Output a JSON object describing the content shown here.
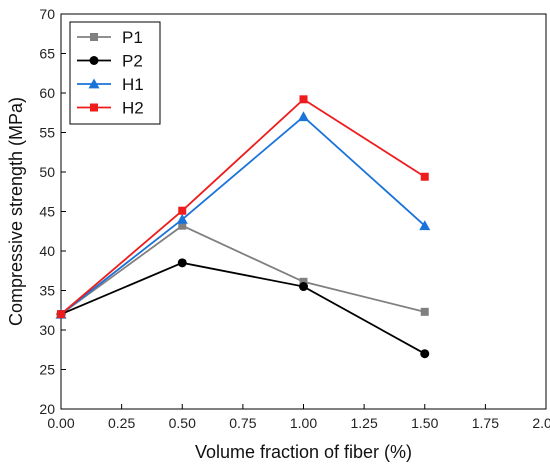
{
  "chart_data": {
    "type": "line",
    "title": "",
    "xlabel": "Volume fraction of fiber (%)",
    "ylabel": "Compressive strength (MPa)",
    "xlim": [
      0.0,
      2.0
    ],
    "ylim": [
      20,
      70
    ],
    "xticks": [
      "0.00",
      "0.25",
      "0.50",
      "0.75",
      "1.00",
      "1.25",
      "1.50",
      "1.75",
      "2.00"
    ],
    "yticks": [
      "20",
      "25",
      "30",
      "35",
      "40",
      "45",
      "50",
      "55",
      "60",
      "65",
      "70"
    ],
    "x": [
      0.0,
      0.5,
      1.0,
      1.5
    ],
    "grid": false,
    "legend_position": "top-left",
    "series": [
      {
        "name": "P1",
        "color": "#808080",
        "marker": "square",
        "values": [
          32.0,
          43.2,
          36.1,
          32.3
        ]
      },
      {
        "name": "P2",
        "color": "#000000",
        "marker": "circle",
        "values": [
          32.0,
          38.5,
          35.5,
          27.0
        ]
      },
      {
        "name": "H1",
        "color": "#1a73d9",
        "marker": "triangle",
        "values": [
          32.0,
          44.0,
          57.0,
          43.2
        ]
      },
      {
        "name": "H2",
        "color": "#ee1c1c",
        "marker": "square",
        "values": [
          32.0,
          45.1,
          59.2,
          49.4
        ]
      }
    ]
  }
}
